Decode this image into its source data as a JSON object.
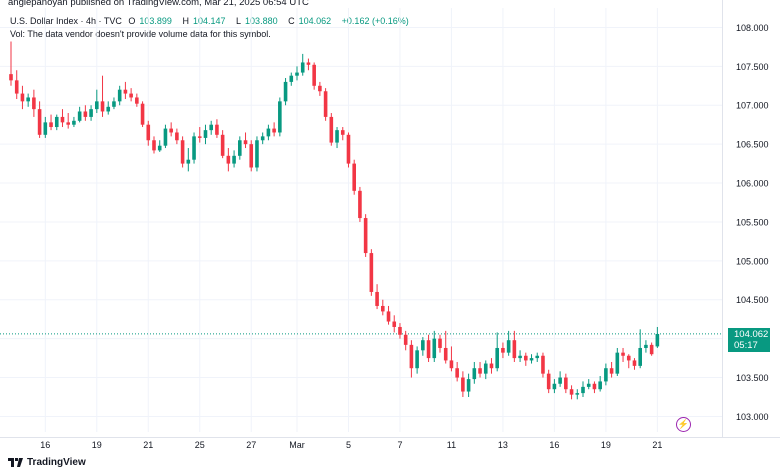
{
  "header": {
    "publisher": "angiepanoyan published on TradingView.com, Mar 21, 2025 06:54 UTC"
  },
  "legend": {
    "symbol": "U.S. Dollar Index · 4h · TVC",
    "open_label": "O",
    "open": "103.899",
    "high_label": "H",
    "high": "104.147",
    "low_label": "L",
    "low": "103.880",
    "close_label": "C",
    "close": "104.062",
    "change": "+0.162 (+0.16%)",
    "volume_note": "Vol: The data vendor doesn't provide volume data for this symbol."
  },
  "price_tag": {
    "price": "104.062",
    "countdown": "05:17"
  },
  "footer": {
    "brand": "TradingView"
  },
  "colors": {
    "up": "#089981",
    "down": "#f23645",
    "grid": "#f0f3fa",
    "axis_text": "#131722"
  },
  "chart_data": {
    "type": "candlestick",
    "title": "U.S. Dollar Index · 4h · TVC",
    "ylim": [
      102.8,
      108.25
    ],
    "y_ticks": [
      "103.000",
      "103.500",
      "104.000",
      "104.500",
      "105.000",
      "105.500",
      "106.000",
      "106.500",
      "107.000",
      "107.500",
      "108.000"
    ],
    "y_tick_values": [
      103.0,
      103.5,
      104.0,
      104.5,
      105.0,
      105.5,
      106.0,
      106.5,
      107.0,
      107.5,
      108.0
    ],
    "x_ticks": [
      {
        "label": "16",
        "index": 6
      },
      {
        "label": "19",
        "index": 15
      },
      {
        "label": "21",
        "index": 24
      },
      {
        "label": "25",
        "index": 33
      },
      {
        "label": "27",
        "index": 42
      },
      {
        "label": "Mar",
        "index": 50
      },
      {
        "label": "5",
        "index": 59
      },
      {
        "label": "7",
        "index": 68
      },
      {
        "label": "11",
        "index": 77
      },
      {
        "label": "13",
        "index": 86
      },
      {
        "label": "16",
        "index": 95
      },
      {
        "label": "19",
        "index": 104
      },
      {
        "label": "21",
        "index": 113
      }
    ],
    "last_price": 104.062,
    "closes": [
      107.32,
      107.15,
      107.05,
      107.1,
      106.95,
      106.62,
      106.78,
      106.72,
      106.85,
      106.78,
      106.75,
      106.8,
      106.92,
      106.85,
      106.95,
      107.05,
      106.92,
      106.98,
      107.05,
      107.2,
      107.15,
      107.1,
      107.02,
      106.75,
      106.55,
      106.42,
      106.48,
      106.7,
      106.65,
      106.55,
      106.25,
      106.3,
      106.6,
      106.58,
      106.68,
      106.75,
      106.62,
      106.35,
      106.25,
      106.35,
      106.55,
      106.5,
      106.2,
      106.55,
      106.6,
      106.7,
      106.65,
      107.05,
      107.3,
      107.38,
      107.42,
      107.55,
      107.52,
      107.25,
      107.18,
      106.85,
      106.52,
      106.68,
      106.62,
      106.25,
      105.9,
      105.55,
      105.1,
      104.6,
      104.42,
      104.35,
      104.22,
      104.15,
      104.05,
      103.92,
      103.62,
      103.85,
      103.98,
      103.75,
      104.0,
      103.88,
      103.72,
      103.62,
      103.5,
      103.32,
      103.48,
      103.62,
      103.55,
      103.68,
      103.62,
      103.88,
      103.82,
      103.98,
      103.75,
      103.78,
      103.72,
      103.75,
      103.78,
      103.55,
      103.35,
      103.42,
      103.5,
      103.35,
      103.28,
      103.3,
      103.38,
      103.42,
      103.35,
      103.45,
      103.62,
      103.55,
      103.82,
      103.78,
      103.72,
      103.65,
      103.88,
      103.92,
      103.8,
      104.06
    ],
    "series": [
      {
        "name": "open",
        "values": [
          107.4,
          107.32,
          107.15,
          107.05,
          107.1,
          106.95,
          106.62,
          106.78,
          106.72,
          106.85,
          106.78,
          106.75,
          106.8,
          106.92,
          106.85,
          106.95,
          107.05,
          106.92,
          106.98,
          107.05,
          107.2,
          107.15,
          107.1,
          107.02,
          106.75,
          106.55,
          106.42,
          106.48,
          106.7,
          106.65,
          106.55,
          106.25,
          106.3,
          106.6,
          106.58,
          106.68,
          106.75,
          106.62,
          106.35,
          106.25,
          106.35,
          106.55,
          106.5,
          106.2,
          106.55,
          106.6,
          106.7,
          106.65,
          107.05,
          107.3,
          107.38,
          107.42,
          107.55,
          107.52,
          107.25,
          107.18,
          106.85,
          106.52,
          106.68,
          106.62,
          106.25,
          105.9,
          105.55,
          105.1,
          104.6,
          104.42,
          104.35,
          104.22,
          104.15,
          104.05,
          103.92,
          103.62,
          103.85,
          103.98,
          103.75,
          104.0,
          103.88,
          103.72,
          103.62,
          103.5,
          103.32,
          103.48,
          103.62,
          103.55,
          103.68,
          103.62,
          103.88,
          103.82,
          103.98,
          103.75,
          103.78,
          103.72,
          103.75,
          103.78,
          103.55,
          103.35,
          103.42,
          103.5,
          103.35,
          103.28,
          103.3,
          103.38,
          103.42,
          103.35,
          103.45,
          103.62,
          103.55,
          103.82,
          103.78,
          103.72,
          103.65,
          103.88,
          103.92,
          103.9
        ]
      },
      {
        "name": "high",
        "values": [
          107.82,
          107.45,
          107.25,
          107.15,
          107.2,
          107.05,
          106.85,
          106.88,
          106.88,
          106.95,
          106.9,
          106.85,
          106.98,
          107.0,
          107.0,
          107.2,
          107.38,
          107.05,
          107.1,
          107.25,
          107.3,
          107.22,
          107.15,
          107.05,
          106.8,
          106.6,
          106.55,
          106.75,
          106.78,
          106.7,
          106.6,
          106.45,
          106.65,
          106.72,
          106.75,
          106.8,
          106.82,
          106.68,
          106.45,
          106.42,
          106.6,
          106.65,
          106.55,
          106.6,
          106.65,
          106.75,
          106.78,
          107.1,
          107.35,
          107.42,
          107.5,
          107.66,
          107.6,
          107.55,
          107.3,
          107.22,
          106.9,
          106.72,
          106.72,
          106.65,
          106.3,
          105.95,
          105.6,
          105.15,
          104.7,
          104.5,
          104.42,
          104.3,
          104.2,
          104.1,
          103.98,
          103.9,
          104.02,
          104.05,
          104.1,
          104.05,
          104.1,
          103.9,
          103.7,
          103.58,
          103.55,
          103.7,
          103.7,
          103.72,
          103.75,
          104.08,
          103.95,
          104.1,
          104.1,
          103.85,
          103.82,
          103.8,
          103.82,
          103.82,
          103.6,
          103.48,
          103.58,
          103.55,
          103.4,
          103.35,
          103.45,
          103.48,
          103.45,
          103.52,
          103.68,
          103.7,
          103.88,
          103.88,
          103.8,
          103.75,
          104.12,
          103.98,
          103.95,
          104.15
        ]
      },
      {
        "name": "low",
        "values": [
          107.25,
          107.08,
          106.95,
          106.98,
          106.85,
          106.58,
          106.58,
          106.68,
          106.68,
          106.72,
          106.7,
          106.72,
          106.78,
          106.8,
          106.8,
          106.9,
          106.85,
          106.88,
          106.95,
          107.0,
          107.08,
          107.05,
          106.98,
          106.72,
          106.48,
          106.38,
          106.4,
          106.45,
          106.6,
          106.5,
          106.2,
          106.15,
          106.25,
          106.52,
          106.5,
          106.62,
          106.58,
          106.32,
          106.15,
          106.2,
          106.3,
          106.45,
          106.15,
          106.15,
          106.5,
          106.55,
          106.6,
          106.6,
          107.0,
          107.25,
          107.32,
          107.38,
          107.45,
          107.2,
          107.12,
          106.8,
          106.48,
          106.45,
          106.55,
          106.2,
          105.85,
          105.5,
          105.05,
          104.55,
          104.38,
          104.3,
          104.18,
          104.08,
          104.0,
          103.85,
          103.5,
          103.55,
          103.78,
          103.7,
          103.7,
          103.82,
          103.68,
          103.58,
          103.45,
          103.25,
          103.25,
          103.42,
          103.5,
          103.48,
          103.55,
          103.58,
          103.75,
          103.78,
          103.7,
          103.7,
          103.65,
          103.68,
          103.7,
          103.5,
          103.3,
          103.3,
          103.38,
          103.3,
          103.22,
          103.22,
          103.25,
          103.35,
          103.3,
          103.32,
          103.4,
          103.5,
          103.52,
          103.7,
          103.62,
          103.6,
          103.62,
          103.82,
          103.78,
          103.88
        ]
      }
    ]
  }
}
